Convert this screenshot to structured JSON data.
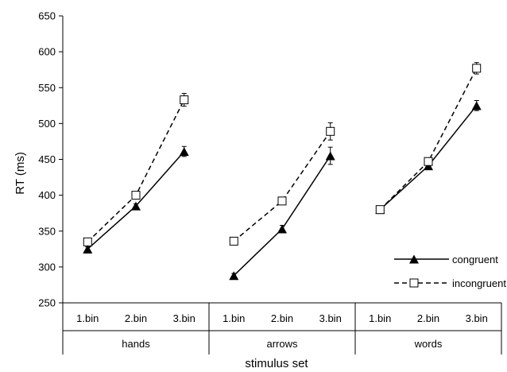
{
  "chart_data": {
    "type": "line",
    "title": "",
    "xlabel": "stimulus set",
    "ylabel": "RT (ms)",
    "ylim": [
      250,
      650
    ],
    "yticks": [
      250,
      300,
      350,
      400,
      450,
      500,
      550,
      600,
      650
    ],
    "grid": false,
    "legend_position": "bottom-right",
    "groups": [
      {
        "name": "hands",
        "categories": [
          "1.bin",
          "2.bin",
          "3.bin"
        ]
      },
      {
        "name": "arrows",
        "categories": [
          "1.bin",
          "2.bin",
          "3.bin"
        ]
      },
      {
        "name": "words",
        "categories": [
          "1.bin",
          "2.bin",
          "3.bin"
        ]
      }
    ],
    "series": [
      {
        "name": "congruent",
        "line_style": "solid",
        "marker": "filled-triangle",
        "color": "#000000",
        "values": [
          [
            325,
            385,
            461
          ],
          [
            288,
            353,
            455
          ],
          [
            380,
            441,
            525
          ]
        ],
        "errors": [
          [
            3,
            3,
            7
          ],
          [
            3,
            5,
            12
          ],
          [
            4,
            3,
            7
          ]
        ]
      },
      {
        "name": "incongruent",
        "line_style": "dashed",
        "marker": "open-square",
        "color": "#000000",
        "values": [
          [
            335,
            400,
            533
          ],
          [
            336,
            392,
            489
          ],
          [
            380,
            447,
            577
          ]
        ],
        "errors": [
          [
            4,
            4,
            9
          ],
          [
            3,
            4,
            12
          ],
          [
            3,
            4,
            8
          ]
        ]
      }
    ]
  }
}
